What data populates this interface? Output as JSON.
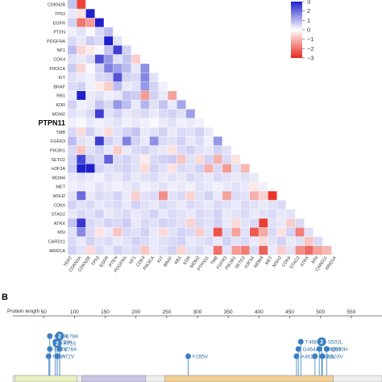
{
  "panel_b_letter": "B",
  "colors": {
    "positive": "#2020cc",
    "neutral": "#ffffff",
    "negative": "#e8281c",
    "lollipop": "#3a7fc1",
    "domain_1": "#e8efc0",
    "domain_2": "#c9c6e6",
    "domain_3": "#f2cf96"
  },
  "chart_data": [
    {
      "type": "heatmap",
      "highlight_gene": "PTPN11",
      "genes": [
        "CDKN2B",
        "TP53",
        "EGFR",
        "PTEN",
        "PDGFRA",
        "NF1",
        "CDK4",
        "PIK3CA",
        "KIT",
        "BRAF",
        "RB1",
        "KDR",
        "MDM2",
        "PTPN11",
        "TMB",
        "FGFR3",
        "PIK3R1",
        "SETD2",
        "H3F3A",
        "MDM4",
        "MET",
        "MSH2",
        "CDK6",
        "STAG2",
        "ATRX",
        "MSI",
        "CARD11",
        "ARID1A"
      ],
      "x_labels": [
        "TERT",
        "CDKN2A",
        "CDKN2B",
        "TP53",
        "EGFR",
        "PTEN",
        "PDGFRA",
        "NF1",
        "CDK4",
        "PIK3CA",
        "KIT",
        "BRAF",
        "RB1",
        "KDR",
        "MDM2",
        "PTPN11",
        "TMB",
        "FGFR3",
        "PIK3R1",
        "SETD2",
        "H3F3A",
        "MDM4",
        "MET",
        "MSH2",
        "CDK6",
        "STAG2",
        "ATRX",
        "MSI",
        "CARD11",
        "ARID1A"
      ],
      "legend": {
        "ticks": [
          "3",
          "2",
          "1",
          "0",
          "−1",
          "−2",
          "−3"
        ],
        "min": -3,
        "max": 3
      },
      "values": [
        [
          0.8,
          -2.6
        ],
        [
          0.3,
          -0.4,
          3.0
        ],
        [
          0.6,
          -1.9,
          -1.4,
          3.0
        ],
        [
          0.2,
          0.4,
          0.1,
          0.5,
          0.9
        ],
        [
          0.5,
          0.3,
          0.7,
          0.5,
          3.0,
          0.4
        ],
        [
          0.9,
          -0.6,
          -0.3,
          0.1,
          0.8,
          2.6,
          0.6
        ],
        [
          0.4,
          0.3,
          0.5,
          2.4,
          1.4,
          0.4,
          0.8,
          -0.7
        ],
        [
          0.7,
          -0.6,
          0.1,
          0.6,
          1.7,
          1.3,
          0.9,
          0.3,
          1.5
        ],
        [
          0.4,
          0.3,
          0.2,
          0.5,
          0.6,
          2.3,
          0.6,
          0.5,
          1.6,
          0.4
        ],
        [
          0.5,
          0.6,
          0.2,
          -0.3,
          -0.7,
          0.9,
          0.3,
          0.4,
          1.4,
          0.6,
          0.2
        ],
        [
          0.3,
          3.0,
          0.3,
          0.4,
          0.2,
          0.3,
          0.8,
          0.7,
          -1.4,
          0.6,
          0.3,
          -1.3
        ],
        [
          0.6,
          0.2,
          0.3,
          0.8,
          0.5,
          1.4,
          0.9,
          0.3,
          1.0,
          0.4,
          0.8,
          0.3,
          1.2
        ],
        [
          0.4,
          0.3,
          0.5,
          2.6,
          0.4,
          0.6,
          0.3,
          0.4,
          0.5,
          0.3,
          0.5,
          0.6,
          0.4,
          1.3
        ],
        [
          0.2,
          0.1,
          0.3,
          0.2,
          0.3,
          0.4,
          0.2,
          0.3,
          0.2,
          0.1,
          0.3,
          0.4,
          0.2,
          0.3,
          0.2
        ],
        [
          0.5,
          -0.5,
          0.6,
          0.3,
          -0.5,
          0.4,
          0.6,
          0.8,
          0.3,
          0.4,
          0.6,
          0.3,
          0.5,
          0.4,
          0.6,
          0.3
        ],
        [
          0.9,
          0.4,
          0.3,
          2.6,
          0.6,
          0.4,
          1.7,
          0.6,
          0.3,
          1.5,
          0.5,
          0.4,
          0.6,
          0.3,
          0.5,
          0.2,
          1.4
        ],
        [
          0.5,
          -0.8,
          0.4,
          0.6,
          0.3,
          -0.7,
          0.3,
          0.5,
          0.6,
          0.4,
          0.3,
          -0.4,
          0.5,
          0.6,
          0.4,
          0.3,
          0.6,
          0.4
        ],
        [
          0.6,
          2.5,
          0.7,
          0.5,
          2.1,
          0.5,
          0.6,
          0.4,
          -0.3,
          0.5,
          0.6,
          0.7,
          -0.8,
          0.4,
          -0.5,
          0.6,
          -1.1,
          0.5,
          -0.4
        ],
        [
          0.7,
          3.0,
          3.0,
          0.6,
          0.4,
          0.5,
          0.6,
          0.4,
          -0.5,
          0.6,
          0.4,
          -0.4,
          0.5,
          0.4,
          0.6,
          -1.1,
          0.5,
          -1.4,
          0.4,
          -1.0
        ],
        [
          0.3,
          0.4,
          0.3,
          0.2,
          0.4,
          0.3,
          0.5,
          0.3,
          0.4,
          0.5,
          0.3,
          0.4,
          0.3,
          0.5,
          0.4,
          0.3,
          0.5,
          0.4,
          0.3,
          0.4,
          0.3
        ],
        [
          0.2,
          0.3,
          0.2,
          0.4,
          0.3,
          0.2,
          0.3,
          0.4,
          0.2,
          0.3,
          0.4,
          0.2,
          0.3,
          0.2,
          0.4,
          0.3,
          0.2,
          0.3,
          0.4,
          0.3,
          -0.3,
          0.2
        ],
        [
          0.4,
          2.0,
          0.3,
          0.5,
          0.4,
          0.6,
          0.3,
          -0.7,
          0.4,
          0.5,
          -1.6,
          0.4,
          0.5,
          -0.6,
          0.4,
          0.6,
          0.3,
          -1.3,
          0.5,
          0.4,
          -1.1,
          -0.6,
          -2.8
        ],
        [
          0.6,
          0.4,
          0.5,
          0.3,
          0.4,
          0.5,
          0.3,
          0.6,
          0.4,
          0.3,
          0.5,
          0.4,
          0.3,
          0.5,
          0.4,
          0.3,
          0.5,
          0.4,
          0.3,
          0.5,
          0.4,
          0.3,
          0.4,
          0.5
        ],
        [
          0.3,
          0.5,
          0.4,
          0.6,
          0.3,
          0.4,
          0.5,
          0.3,
          0.4,
          0.6,
          0.3,
          0.5,
          0.4,
          0.3,
          0.5,
          0.4,
          0.6,
          0.3,
          0.4,
          0.5,
          0.3,
          0.4,
          0.5,
          0.3,
          0.4
        ],
        [
          0.8,
          2.7,
          0.5,
          0.4,
          0.6,
          0.5,
          0.7,
          0.3,
          0.5,
          0.4,
          0.6,
          0.5,
          0.4,
          -0.6,
          0.5,
          0.4,
          0.6,
          0.3,
          -0.5,
          0.4,
          0.5,
          -2.7,
          0.4,
          0.3,
          -0.7,
          0.5
        ],
        [
          0.4,
          1.6,
          0.5,
          -0.4,
          0.3,
          -0.8,
          0.5,
          0.4,
          0.6,
          0.3,
          -0.5,
          0.4,
          0.6,
          0.5,
          -0.7,
          0.4,
          -2.4,
          0.5,
          -1.3,
          0.4,
          -2.3,
          -1.2,
          0.5,
          -0.4,
          0.6,
          -1.8,
          0.4
        ],
        [
          0.5,
          0.3,
          0.6,
          0.4,
          0.5,
          0.3,
          0.4,
          0.6,
          0.5,
          0.3,
          0.4,
          0.5,
          0.6,
          0.3,
          0.4,
          0.5,
          0.3,
          0.6,
          0.4,
          0.5,
          0.3,
          -0.5,
          0.4,
          0.6,
          0.3,
          0.4,
          -0.8,
          0.5
        ],
        [
          0.6,
          0.4,
          -0.5,
          0.5,
          0.3,
          0.6,
          0.4,
          0.5,
          -0.8,
          0.3,
          0.4,
          0.6,
          -0.6,
          0.4,
          0.5,
          0.3,
          -2.0,
          0.4,
          -1.4,
          -1.8,
          0.5,
          -2.2,
          0.3,
          -0.7,
          0.4,
          -1.6,
          -2.1,
          -1.3,
          -1.0
        ]
      ]
    },
    {
      "type": "scatter",
      "xlabel": "Protein length",
      "xticks": [
        50,
        100,
        150,
        200,
        250,
        300,
        350,
        400,
        450,
        500,
        550
      ],
      "xlim": [
        0,
        600
      ],
      "mutations": [
        {
          "label": "N58Y",
          "pos": 58,
          "count": 1
        },
        {
          "label": "G60V",
          "pos": 60,
          "count": 1
        },
        {
          "label": "G60R",
          "pos": 60,
          "count": 1
        },
        {
          "label": "E69K",
          "pos": 69,
          "count": 1
        },
        {
          "label": "A72V",
          "pos": 72,
          "count": 1
        },
        {
          "label": "A72S",
          "pos": 72,
          "count": 2
        },
        {
          "label": "E76A",
          "pos": 76,
          "count": 1
        },
        {
          "label": "E76K",
          "pos": 76,
          "count": 2
        },
        {
          "label": "F285V",
          "pos": 285,
          "count": 1
        },
        {
          "label": "A461T",
          "pos": 461,
          "count": 1
        },
        {
          "label": "G464A",
          "pos": 464,
          "count": 1
        },
        {
          "label": "T468M",
          "pos": 468,
          "count": 1
        },
        {
          "label": "R491L",
          "pos": 491,
          "count": 1
        },
        {
          "label": "R498W",
          "pos": 498,
          "count": 1
        },
        {
          "label": "S502L",
          "pos": 502,
          "count": 2
        },
        {
          "label": "G503V",
          "pos": 503,
          "count": 1
        },
        {
          "label": "Q510H",
          "pos": 510,
          "count": 1
        }
      ],
      "domains": [
        {
          "start": 3,
          "end": 104
        },
        {
          "start": 112,
          "end": 216
        },
        {
          "start": 247,
          "end": 521
        }
      ]
    }
  ]
}
